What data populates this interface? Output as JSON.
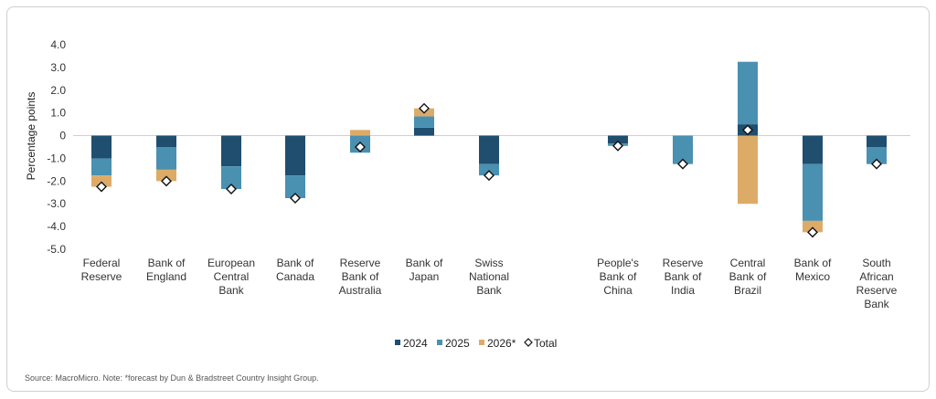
{
  "chart_data": {
    "type": "bar",
    "stacked": true,
    "ylabel": "Percentage points",
    "ylim": [
      -5,
      4
    ],
    "yticks": [
      "4.0",
      "3.0",
      "2.0",
      "1.0",
      "0",
      "-1.0",
      "-2.0",
      "-3.0",
      "-4.0",
      "-5.0"
    ],
    "ytick_values": [
      4,
      3,
      2,
      1,
      0,
      -1,
      -2,
      -3,
      -4,
      -5
    ],
    "categories": [
      [
        "Federal",
        "Reserve"
      ],
      [
        "Bank of",
        "England"
      ],
      [
        "European",
        "Central",
        "Bank"
      ],
      [
        "Bank of",
        "Canada"
      ],
      [
        "Reserve",
        "Bank of",
        "Australia"
      ],
      [
        "Bank of",
        "Japan"
      ],
      [
        "Swiss",
        "National",
        "Bank"
      ],
      [
        "People's",
        "Bank of",
        "China"
      ],
      [
        "Reserve",
        "Bank of",
        "India"
      ],
      [
        "Central",
        "Bank of",
        "Brazil"
      ],
      [
        "Bank of",
        "Mexico"
      ],
      [
        "South",
        "African",
        "Reserve",
        "Bank"
      ]
    ],
    "series": [
      {
        "name": "2024",
        "color": "#1f4e6e",
        "values": [
          -1.0,
          -0.5,
          -1.35,
          -1.75,
          0.0,
          0.35,
          -1.25,
          -0.35,
          0.0,
          0.5,
          -1.25,
          -0.5
        ]
      },
      {
        "name": "2025",
        "color": "#4a90b0",
        "values": [
          -0.75,
          -1.0,
          -1.0,
          -1.0,
          -0.75,
          0.5,
          -0.5,
          -0.1,
          -1.25,
          2.75,
          -2.5,
          -0.75
        ]
      },
      {
        "name": "2026*",
        "color": "#ddab68",
        "values": [
          -0.5,
          -0.5,
          0.0,
          0.0,
          0.25,
          0.35,
          0.0,
          0.0,
          0.0,
          -3.0,
          -0.5,
          0.0
        ]
      }
    ],
    "total": {
      "name": "Total",
      "values": [
        -2.25,
        -2.0,
        -2.35,
        -2.75,
        -0.5,
        1.2,
        -1.75,
        -0.45,
        -1.25,
        0.25,
        -4.25,
        -1.25
      ]
    },
    "legend": [
      "2024",
      "2025",
      "2026*",
      "Total"
    ],
    "legend_position": "bottom",
    "grid": false
  },
  "source_note": "Source: MacroMicro. Note: *forecast by Dun & Bradstreet Country Insight Group."
}
